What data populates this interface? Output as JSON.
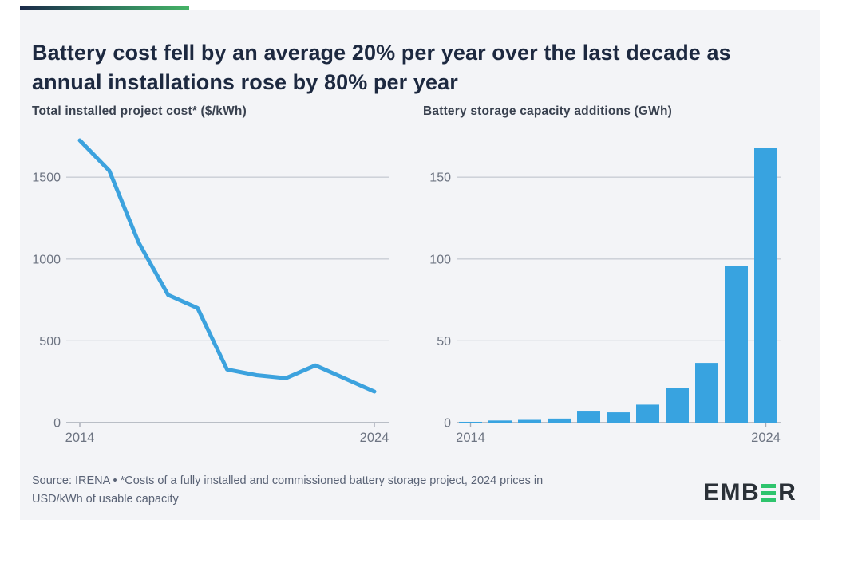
{
  "header": {
    "title_line1": "Battery cost fell by an average 20% per year over the last decade as",
    "title_line2": "annual installations rose by 80% per year"
  },
  "chart_data": [
    {
      "type": "line",
      "title": "Total installed project cost* ($/kWh)",
      "x": [
        2014,
        2015,
        2016,
        2017,
        2018,
        2019,
        2020,
        2021,
        2022,
        2023,
        2024
      ],
      "values": [
        1725,
        1540,
        1100,
        780,
        700,
        325,
        290,
        272,
        350,
        270,
        190
      ],
      "ylabel": "$/kWh",
      "yticks": [
        0,
        500,
        1000,
        1500
      ],
      "ylim": [
        0,
        1800
      ],
      "xtick_labels": [
        "2014",
        "2024"
      ],
      "grid": true,
      "line_color": "#3ca2de"
    },
    {
      "type": "bar",
      "title": "Battery storage capacity additions (GWh)",
      "x": [
        2014,
        2015,
        2016,
        2017,
        2018,
        2019,
        2020,
        2021,
        2022,
        2023,
        2024
      ],
      "values": [
        0.5,
        1.3,
        1.7,
        2.5,
        6.8,
        6.3,
        11,
        21,
        36.5,
        96,
        168
      ],
      "ylabel": "GWh",
      "yticks": [
        0,
        50,
        100,
        150
      ],
      "ylim": [
        0,
        172
      ],
      "xtick_labels": [
        "2014",
        "2024"
      ],
      "grid": true,
      "bar_color": "#38a3e0"
    }
  ],
  "footer": {
    "source_line1": "Source: IRENA • *Costs of a fully installed and commissioned battery storage project, 2024 prices in",
    "source_line2": "USD/kWh of usable capacity",
    "logo_prefix": "EMB",
    "logo_suffix": "R",
    "logo_name": "EMBER"
  },
  "colors": {
    "card_bg": "#f3f4f7",
    "accent_gradient_start": "#1b2a49",
    "accent_gradient_end": "#45b366",
    "title_text": "#1d2940",
    "axis_label": "#6d7482",
    "gridline": "#c9cdd5",
    "axis_line": "#a6abb6",
    "source_text": "#5a6376",
    "logo_dark": "#2a3037",
    "logo_green": "#2ec46d"
  }
}
